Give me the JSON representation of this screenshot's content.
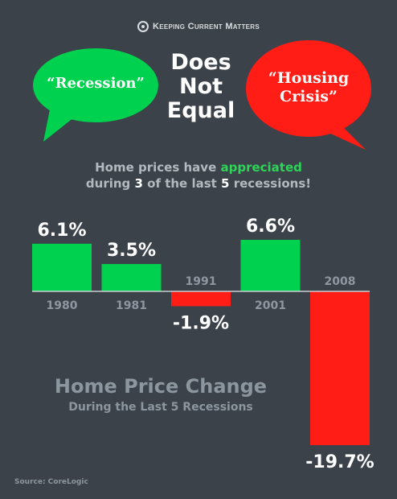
{
  "brand": {
    "name": "Keeping Current Matters"
  },
  "header": {
    "left_bubble": "“Recession”",
    "middle_lines": [
      "Does",
      "Not",
      "Equal"
    ],
    "right_bubble_lines": [
      "“Housing",
      "Crisis”"
    ]
  },
  "subtitle": {
    "part1": "Home prices have ",
    "highlight": "appreciated",
    "part2": "during ",
    "emph_num": "3",
    "part3": " of the last ",
    "emph_num2": "5",
    "part4": " recessions!"
  },
  "colors": {
    "positive": "#00d14f",
    "negative": "#ff1d16",
    "background": "#3b4249"
  },
  "chart_data": {
    "type": "bar",
    "title": "Home Price Change",
    "subtitle": "During the Last 5 Recessions",
    "categories": [
      "1980",
      "1981",
      "1991",
      "2001",
      "2008"
    ],
    "values": [
      6.1,
      3.5,
      -1.9,
      6.6,
      -19.7
    ],
    "value_labels": [
      "6.1%",
      "3.5%",
      "-1.9%",
      "6.6%",
      "-19.7%"
    ],
    "ylabel": "",
    "ylim": [
      -19.7,
      6.6
    ],
    "grid": false
  },
  "source": "Source: CoreLogic"
}
